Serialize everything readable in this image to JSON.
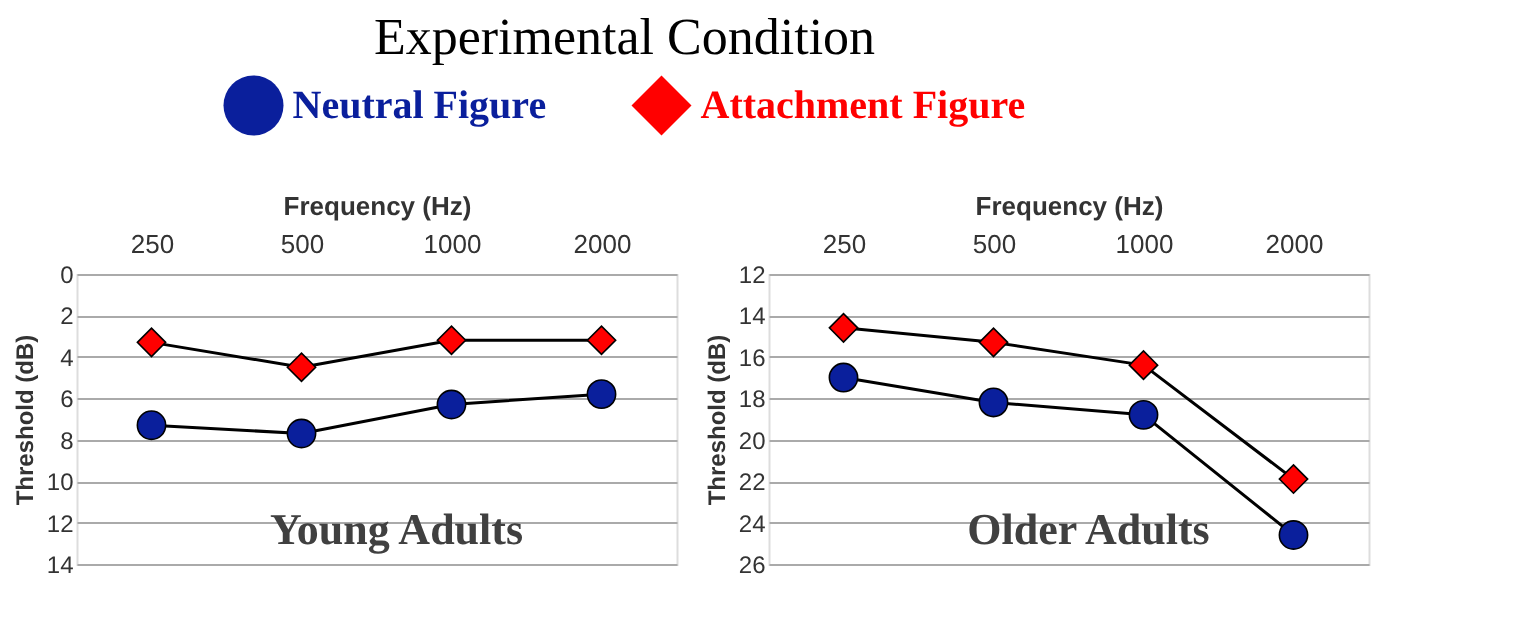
{
  "chart_data": [
    {
      "type": "line",
      "xlabel": "Frequency (Hz)",
      "ylabel": "Threshold (dB)",
      "legend_title": "Experimental Condition",
      "legend": "top",
      "categories": [
        "250",
        "500",
        "1000",
        "2000"
      ],
      "ylim": [
        14,
        0
      ],
      "yticks": [
        0,
        2,
        4,
        6,
        8,
        10,
        12,
        14
      ],
      "grid": "y",
      "annotations": [
        "Young Adults"
      ],
      "series": [
        {
          "name": "Neutral Figure",
          "color": "#0a1f9c",
          "marker": "circle",
          "values": [
            7.3,
            7.7,
            6.3,
            5.8
          ]
        },
        {
          "name": "Attachment Figure",
          "color": "#ff0000",
          "marker": "diamond",
          "values": [
            3.3,
            4.5,
            3.2,
            3.2
          ]
        }
      ]
    },
    {
      "type": "line",
      "xlabel": "Frequency (Hz)",
      "ylabel": "Threshold (dB)",
      "categories": [
        "250",
        "500",
        "1000",
        "2000"
      ],
      "ylim": [
        26,
        12
      ],
      "yticks": [
        12,
        14,
        16,
        18,
        20,
        22,
        24,
        26
      ],
      "grid": "y",
      "annotations": [
        "Older Adults"
      ],
      "series": [
        {
          "name": "Neutral Figure",
          "color": "#0a1f9c",
          "marker": "circle",
          "values": [
            17.0,
            18.2,
            18.8,
            24.6
          ]
        },
        {
          "name": "Attachment Figure",
          "color": "#ff0000",
          "marker": "diamond",
          "values": [
            14.6,
            15.3,
            16.4,
            21.9
          ]
        }
      ]
    }
  ]
}
